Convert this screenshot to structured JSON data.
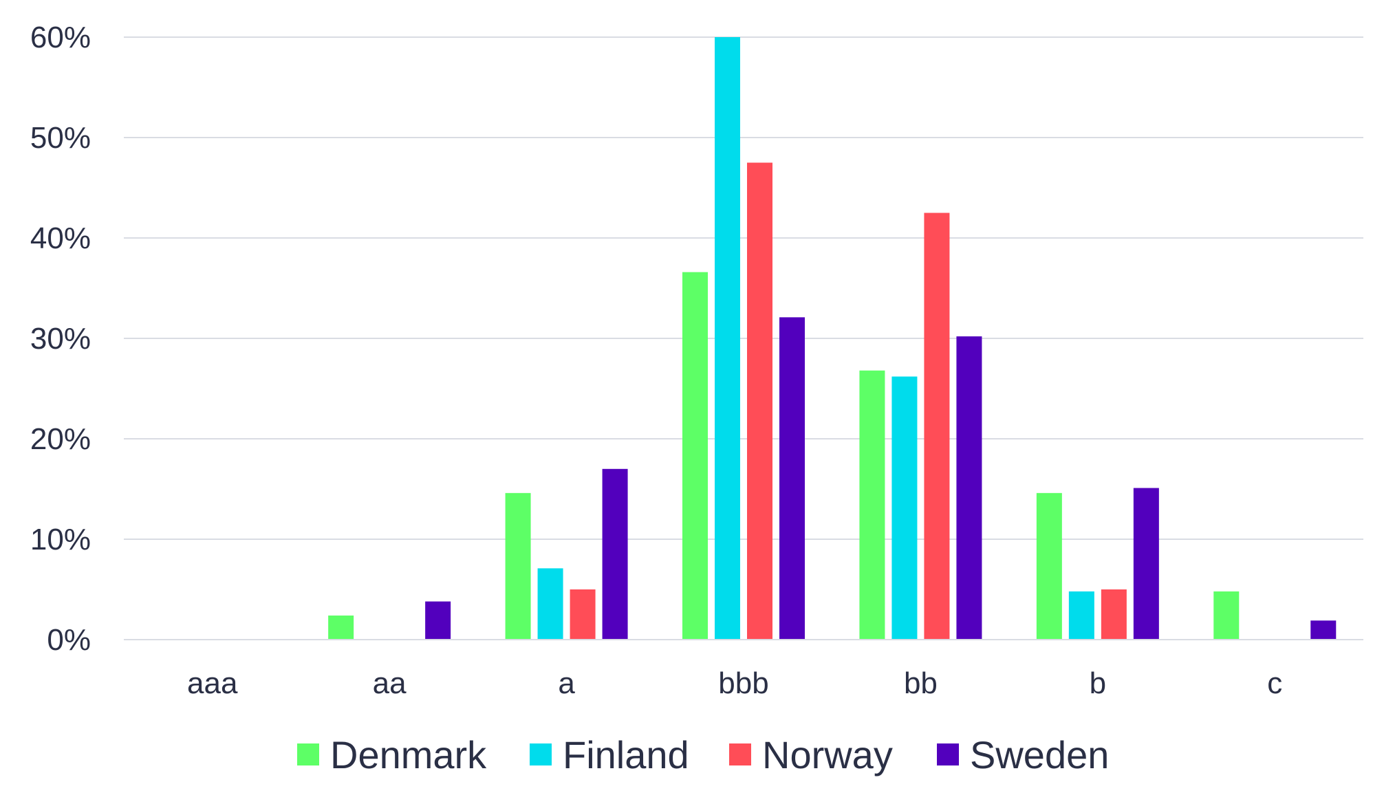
{
  "chart_data": {
    "type": "bar",
    "categories": [
      "aaa",
      "aa",
      "a",
      "bbb",
      "bb",
      "b",
      "c"
    ],
    "series": [
      {
        "name": "Denmark",
        "color": "#5dff66",
        "values": [
          0,
          2.4,
          14.6,
          36.6,
          26.8,
          14.6,
          4.8
        ]
      },
      {
        "name": "Finland",
        "color": "#00dcec",
        "values": [
          0,
          0,
          7.1,
          60.0,
          26.2,
          4.8,
          0
        ]
      },
      {
        "name": "Norway",
        "color": "#ff4d57",
        "values": [
          0,
          0,
          5.0,
          47.5,
          42.5,
          5.0,
          0
        ]
      },
      {
        "name": "Sweden",
        "color": "#5200bd",
        "values": [
          0,
          3.8,
          17.0,
          32.1,
          30.2,
          15.1,
          1.9
        ]
      }
    ],
    "y_ticks": [
      "0%",
      "10%",
      "20%",
      "30%",
      "40%",
      "50%",
      "60%"
    ],
    "ylim": [
      0,
      60
    ],
    "grid": true,
    "legend_position": "bottom",
    "title": "",
    "xlabel": "",
    "ylabel": ""
  }
}
